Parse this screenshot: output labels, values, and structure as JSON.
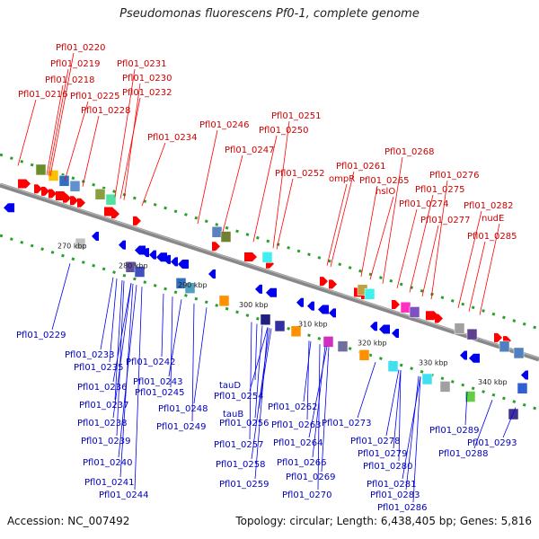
{
  "title": "Pseudomonas fluorescens Pf0-1, complete genome",
  "footer": {
    "accession": "Accession: NC_007492",
    "summary": "Topology: circular; Length: 6,438,405 bp; Genes: 5,816"
  },
  "colors": {
    "forward": "#ff0000",
    "reverse": "#0000ee",
    "backbone": "#888888",
    "dots": "#2aa02a"
  },
  "kbp_ticks": [
    "270 kbp",
    "280 kbp",
    "290 kbp",
    "300 kbp",
    "310 kbp",
    "320 kbp",
    "330 kbp",
    "340 kbp"
  ],
  "top_labels": [
    "Pfl01_0220",
    "Pfl01_0219",
    "Pfl01_0218",
    "Pfl01_0216",
    "Pfl01_0231",
    "Pfl01_0230",
    "Pfl01_0225",
    "Pfl01_0232",
    "Pfl01_0228",
    "Pfl01_0234",
    "Pfl01_0246",
    "Pfl01_0251",
    "Pfl01_0250",
    "Pfl01_0247",
    "Pfl01_0252",
    "Pfl01_0261",
    "ompR",
    "Pfl01_0265",
    "hslO",
    "Pfl01_0268",
    "Pfl01_0276",
    "Pfl01_0275",
    "Pfl01_0274",
    "Pfl01_0277",
    "Pfl01_0282",
    "nudE",
    "Pfl01_0285"
  ],
  "bottom_labels": [
    "Pfl01_0229",
    "Pfl01_0233",
    "Pfl01_0235",
    "Pfl01_0242",
    "Pfl01_0236",
    "Pfl01_0243",
    "Pfl01_0237",
    "Pfl01_0245",
    "Pfl01_0238",
    "Pfl01_0248",
    "Pfl01_0239",
    "Pfl01_0249",
    "Pfl01_0240",
    "Pfl01_0241",
    "Pfl01_0244",
    "tauD",
    "Pfl01_0254",
    "tauB",
    "Pfl01_0256",
    "Pfl01_0257",
    "Pfl01_0258",
    "Pfl01_0259",
    "Pfl01_0262",
    "Pfl01_0263",
    "Pfl01_0264",
    "Pfl01_0266",
    "Pfl01_0269",
    "Pfl01_0270",
    "Pfl01_0273",
    "Pfl01_0278",
    "Pfl01_0279",
    "Pfl01_0280",
    "Pfl01_0281",
    "Pfl01_0283",
    "Pfl01_0286",
    "Pfl01_0289",
    "Pfl01_0288",
    "Pfl01_0293"
  ]
}
